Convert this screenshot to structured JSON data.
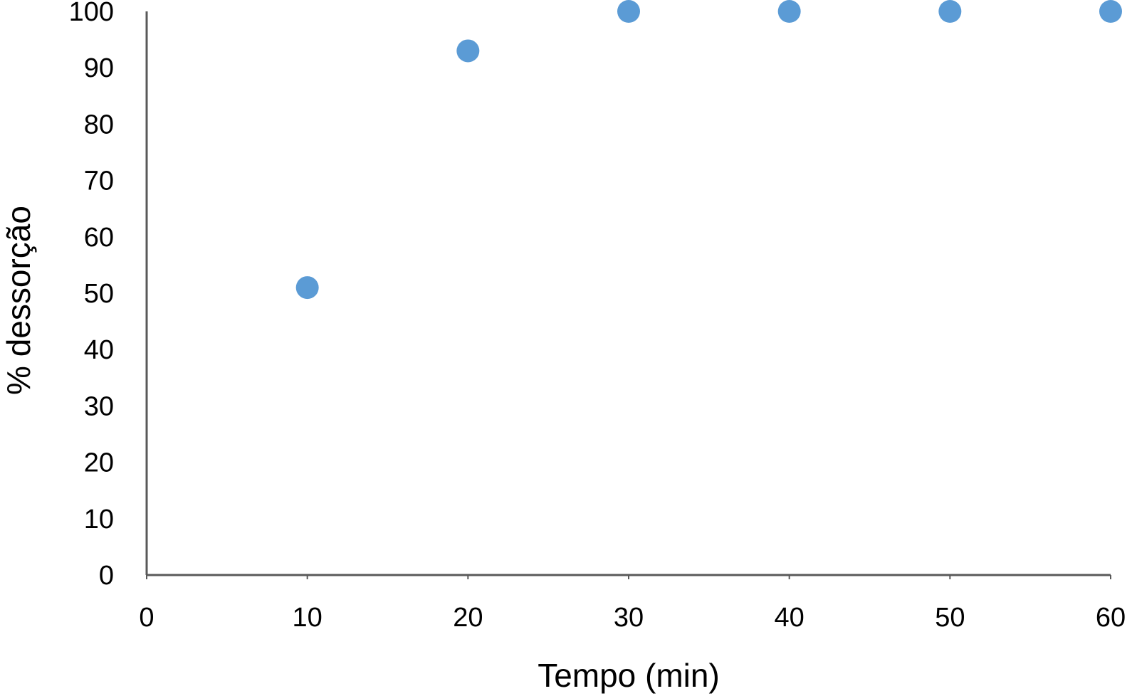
{
  "chart_data": {
    "type": "scatter",
    "title": "",
    "xlabel": "Tempo (min)",
    "ylabel": "% dessorção",
    "xlim": [
      0,
      60
    ],
    "ylim": [
      0,
      100
    ],
    "x_ticks": [
      "0",
      "10",
      "20",
      "30",
      "40",
      "50",
      "60"
    ],
    "y_ticks": [
      "0",
      "10",
      "20",
      "30",
      "40",
      "50",
      "60",
      "70",
      "80",
      "90",
      "100"
    ],
    "grid": false,
    "legend": "none",
    "series": [
      {
        "color": "#5b9bd5",
        "points": [
          {
            "x": 10,
            "y": 51
          },
          {
            "x": 20,
            "y": 93
          },
          {
            "x": 30,
            "y": 100
          },
          {
            "x": 40,
            "y": 100
          },
          {
            "x": 50,
            "y": 100
          },
          {
            "x": 60,
            "y": 100
          }
        ]
      }
    ],
    "axis_color": "#595959"
  }
}
